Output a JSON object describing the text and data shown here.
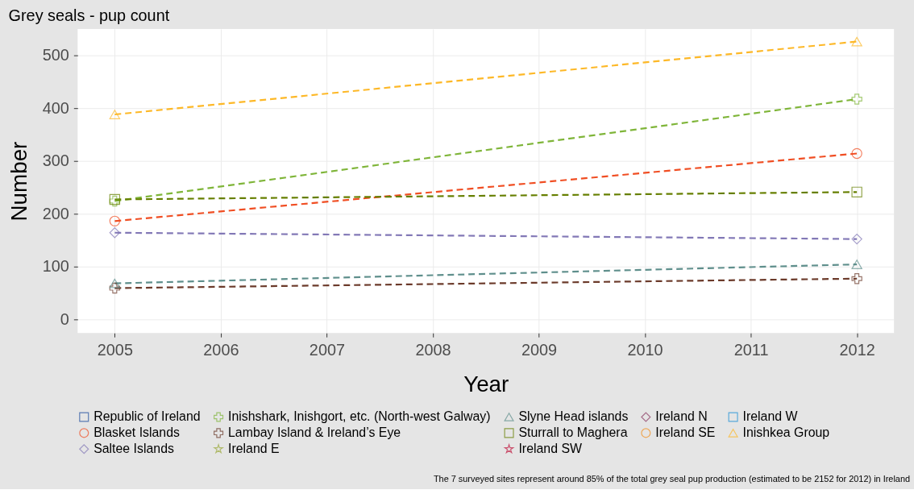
{
  "chart_data": {
    "type": "line",
    "title": "Grey seals - pup count",
    "xlabel": "Year",
    "ylabel": "Number",
    "x": [
      2005,
      2012
    ],
    "xlim": [
      2004.65,
      2012.35
    ],
    "xticks": [
      2005,
      2006,
      2007,
      2008,
      2009,
      2010,
      2011,
      2012
    ],
    "ylim": [
      -26,
      550
    ],
    "yticks": [
      0,
      100,
      200,
      300,
      400,
      500
    ],
    "grid": true,
    "legend": "bottom",
    "line_style": "dashed",
    "series": [
      {
        "name": "Republic of Ireland",
        "color": "#1f4e9e",
        "marker": "square",
        "values": [
          null,
          null
        ]
      },
      {
        "name": "Blasket Islands",
        "color": "#f04e23",
        "marker": "circle",
        "values": [
          186,
          314
        ]
      },
      {
        "name": "Inishkea Group",
        "color": "#fdb827",
        "marker": "triangle",
        "values": [
          388,
          526
        ]
      },
      {
        "name": "Inishshark, Inishgort, etc. (North-west Galway)",
        "color": "#7fb539",
        "marker": "cross",
        "values": [
          224,
          417
        ]
      },
      {
        "name": "Lambay Island & Ireland’s Eye",
        "color": "#6b3a2a",
        "marker": "cross",
        "values": [
          59,
          77
        ]
      },
      {
        "name": "Saltee Islands",
        "color": "#8278b6",
        "marker": "diamond",
        "values": [
          164,
          152
        ]
      },
      {
        "name": "Slyne Head islands",
        "color": "#5f8f8c",
        "marker": "triangle",
        "values": [
          68,
          104
        ]
      },
      {
        "name": "Sturrall to Maghera",
        "color": "#667f00",
        "marker": "square",
        "values": [
          227,
          241
        ]
      },
      {
        "name": "Ireland E",
        "color": "#9aa83a",
        "marker": "star",
        "values": [
          null,
          null
        ]
      },
      {
        "name": "Ireland N",
        "color": "#8b3a62",
        "marker": "diamond",
        "values": [
          null,
          null
        ]
      },
      {
        "name": "Ireland SE",
        "color": "#f28e1c",
        "marker": "circle",
        "values": [
          null,
          null
        ]
      },
      {
        "name": "Ireland SW",
        "color": "#c0143c",
        "marker": "star",
        "values": [
          null,
          null
        ]
      },
      {
        "name": "Ireland W",
        "color": "#1e90d6",
        "marker": "square",
        "values": [
          null,
          null
        ]
      }
    ],
    "annotations": [
      "The 7 surveyed sites represent around 85% of the total grey seal pup production (estimated to be 2152 for 2012) in Ireland"
    ]
  }
}
